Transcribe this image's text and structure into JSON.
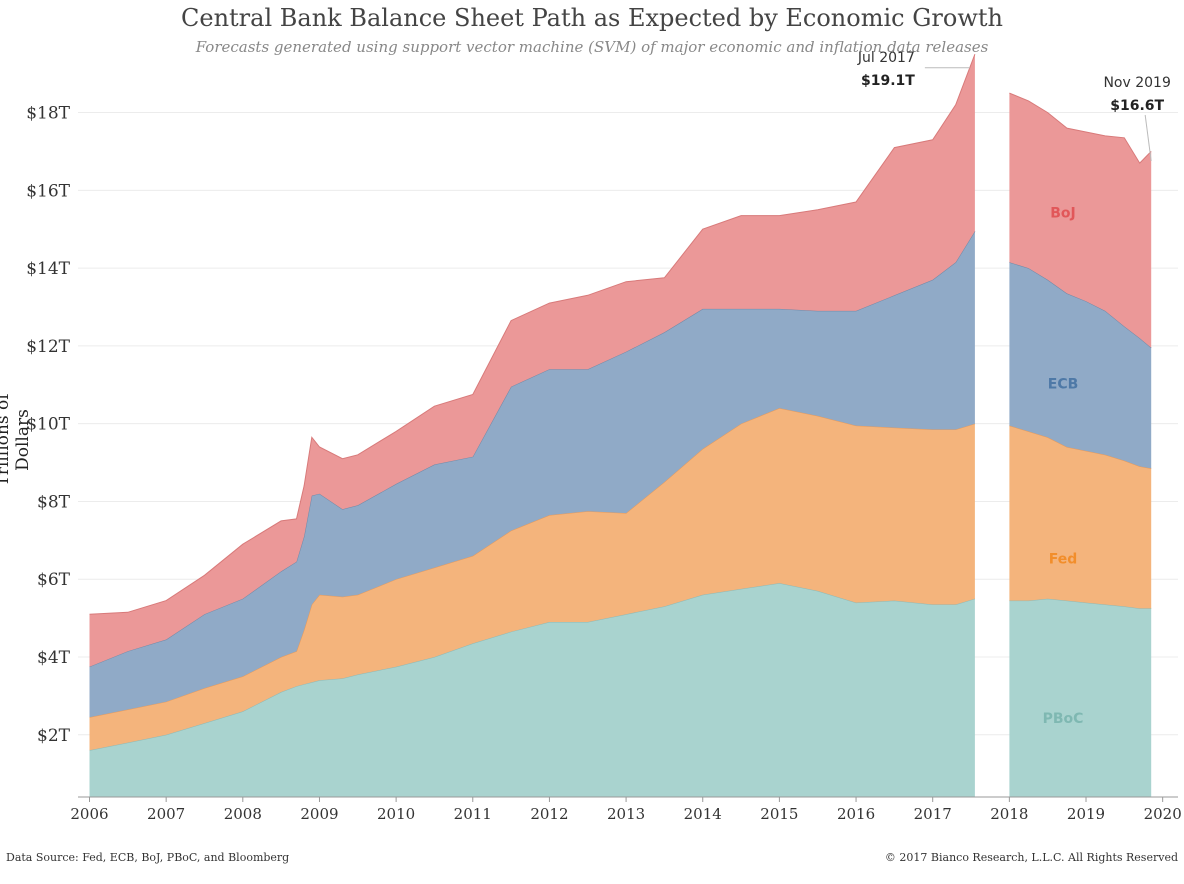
{
  "chart_data": {
    "type": "area",
    "title": "Central Bank Balance Sheet Path as Expected by Economic Growth",
    "subtitle": "Forecasts generated using support vector machine (SVM) of major economic and inflation data releases",
    "ylabel": "Trillions of Dollars",
    "xlabel": "",
    "ylim": [
      0.4,
      19.3
    ],
    "y_ticks": [
      2,
      4,
      6,
      8,
      10,
      12,
      14,
      16,
      18
    ],
    "y_tick_labels": [
      "$2T",
      "$4T",
      "$6T",
      "$8T",
      "$10T",
      "$12T",
      "$14T",
      "$16T",
      "$18T"
    ],
    "x_ticks": [
      2006,
      2007,
      2008,
      2009,
      2010,
      2011,
      2012,
      2013,
      2014,
      2015,
      2016,
      2017,
      2018,
      2019,
      2020
    ],
    "xlim": [
      2005.85,
      2020.2
    ],
    "stacked": true,
    "grid": true,
    "segments": [
      {
        "x": [
          2006.0,
          2006.5,
          2007.0,
          2007.5,
          2008.0,
          2008.5,
          2008.7,
          2008.8,
          2008.9,
          2009.0,
          2009.3,
          2009.5,
          2010.0,
          2010.5,
          2011.0,
          2011.5,
          2012.0,
          2012.5,
          2013.0,
          2013.5,
          2014.0,
          2014.5,
          2015.0,
          2015.5,
          2016.0,
          2016.5,
          2017.0,
          2017.3,
          2017.55
        ],
        "series": [
          {
            "name": "PBoC",
            "values": [
              1.2,
              1.4,
              1.6,
              1.9,
              2.2,
              2.7,
              2.85,
              2.9,
              2.95,
              3.0,
              3.05,
              3.15,
              3.35,
              3.6,
              3.95,
              4.25,
              4.5,
              4.5,
              4.7,
              4.9,
              5.2,
              5.35,
              5.5,
              5.3,
              5.0,
              5.05,
              4.95,
              4.95,
              5.1
            ]
          },
          {
            "name": "Fed",
            "values": [
              0.85,
              0.85,
              0.85,
              0.9,
              0.9,
              0.9,
              0.9,
              1.4,
              2.0,
              2.2,
              2.1,
              2.05,
              2.25,
              2.3,
              2.25,
              2.6,
              2.75,
              2.85,
              2.6,
              3.2,
              3.75,
              4.25,
              4.5,
              4.5,
              4.55,
              4.45,
              4.5,
              4.5,
              4.5
            ]
          },
          {
            "name": "ECB",
            "values": [
              1.3,
              1.5,
              1.6,
              1.9,
              2.0,
              2.2,
              2.3,
              2.4,
              2.8,
              2.6,
              2.25,
              2.3,
              2.45,
              2.65,
              2.55,
              3.7,
              3.75,
              3.65,
              4.15,
              3.85,
              3.6,
              2.95,
              2.55,
              2.7,
              2.95,
              3.4,
              3.85,
              4.3,
              4.95
            ]
          },
          {
            "name": "BoJ",
            "values": [
              1.35,
              1.0,
              1.0,
              1.0,
              1.4,
              1.3,
              1.1,
              1.3,
              1.5,
              1.2,
              1.3,
              1.3,
              1.35,
              1.5,
              1.6,
              1.7,
              1.7,
              1.9,
              1.8,
              1.4,
              2.05,
              2.4,
              2.4,
              2.6,
              2.8,
              3.8,
              3.6,
              4.05,
              4.55
            ]
          }
        ]
      },
      {
        "x": [
          2018.0,
          2018.25,
          2018.5,
          2018.75,
          2019.0,
          2019.25,
          2019.5,
          2019.7,
          2019.85
        ],
        "series": [
          {
            "name": "PBoC",
            "values": [
              5.05,
              5.05,
              5.1,
              5.05,
              5.0,
              4.95,
              4.9,
              4.85,
              4.85
            ]
          },
          {
            "name": "Fed",
            "values": [
              4.5,
              4.35,
              4.15,
              3.95,
              3.9,
              3.85,
              3.75,
              3.65,
              3.6
            ]
          },
          {
            "name": "ECB",
            "values": [
              4.2,
              4.2,
              4.05,
              3.95,
              3.85,
              3.7,
              3.45,
              3.3,
              3.1
            ]
          },
          {
            "name": "BoJ",
            "values": [
              4.35,
              4.3,
              4.3,
              4.25,
              4.35,
              4.5,
              4.85,
              4.5,
              5.05
            ]
          }
        ]
      }
    ],
    "series_colors": {
      "PBoC": "#a9d3cf",
      "Fed": "#f4b47c",
      "ECB": "#90aac7",
      "BoJ": "#eb9898"
    },
    "series_line_colors": {
      "PBoC": "#8fb9b5",
      "Fed": "#e69a5c",
      "ECB": "#6f89a8",
      "BoJ": "#d87a7a"
    },
    "series_label_colors": {
      "PBoC": "#7fb8b2",
      "Fed": "#f28e2b",
      "ECB": "#4e79a7",
      "BoJ": "#e15759"
    },
    "series_labels": [
      {
        "series": "BoJ",
        "text": "BoJ",
        "x": 2018.7,
        "y": 15.3
      },
      {
        "series": "ECB",
        "text": "ECB",
        "x": 2018.7,
        "y": 10.9
      },
      {
        "series": "Fed",
        "text": "Fed",
        "x": 2018.7,
        "y": 6.4
      },
      {
        "series": "PBoC",
        "text": "PBoC",
        "x": 2018.7,
        "y": 2.3
      }
    ],
    "annotations": [
      {
        "label": "Jul 2017",
        "value": "$19.1T",
        "x": 2017.55,
        "y": 19.1
      },
      {
        "label": "Nov 2019",
        "value": "$16.6T",
        "x": 2019.85,
        "y": 16.6
      }
    ]
  },
  "footer": {
    "source": "Data Source: Fed, ECB, BoJ, PBoC, and Bloomberg",
    "copyright": "© 2017 Bianco Research, L.L.C. All Rights Reserved"
  }
}
